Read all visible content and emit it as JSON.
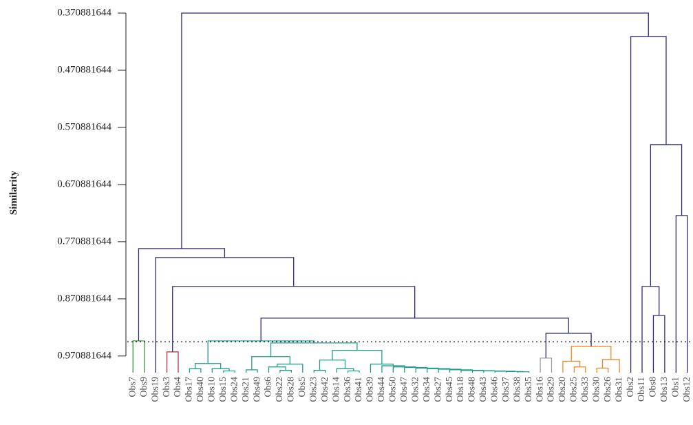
{
  "chart_data": {
    "type": "dendrogram",
    "ylabel": "Similarity",
    "ylim": [
      0.370881644,
      1
    ],
    "yticks": [
      0.370881644,
      0.470881644,
      0.570881644,
      0.670881644,
      0.770881644,
      0.870881644,
      0.970881644
    ],
    "cut_height": 0.9459,
    "color": "#2a2a78",
    "categories": [
      "Obs7",
      "Obs9",
      "Obs19",
      "Obs3",
      "Obs4",
      "Obs17",
      "Obs40",
      "Obs10",
      "Obs15",
      "Obs24",
      "Obs21",
      "Obs49",
      "Obs6",
      "Obs22",
      "Obs28",
      "Obs5",
      "Obs23",
      "Obs42",
      "Obs14",
      "Obs36",
      "Obs41",
      "Obs39",
      "Obs44",
      "Obs50",
      "Obs47",
      "Obs32",
      "Obs34",
      "Obs27",
      "Obs45",
      "Obs18",
      "Obs48",
      "Obs43",
      "Obs46",
      "Obs37",
      "Obs38",
      "Obs35",
      "Obs16",
      "Obs29",
      "Obs20",
      "Obs25",
      "Obs33",
      "Obs30",
      "Obs26",
      "Obs31",
      "Obs2",
      "Obs11",
      "Obs8",
      "Obs13",
      "Obs1",
      "Obs12"
    ],
    "tree": {
      "h": 0.370881644,
      "c": [
        {
          "h": 0.7829,
          "c": [
            {
              "h": 0.9444,
              "color": "#3a9a3a",
              "c": [
                0,
                1
              ]
            },
            {
              "h": 0.7986,
              "c": [
                2,
                {
                  "h": 0.8492,
                  "c": [
                    {
                      "h": 0.9637,
                      "color": "#a83232",
                      "c": [
                        3,
                        4
                      ]
                    },
                    {
                      "h": 0.9046,
                      "c": [
                        {
                          "h": 0.9444,
                          "color": "#1f9e8a",
                          "c": [
                            {
                              "h": 0.984,
                              "c": [
                                {
                                  "h": 0.993,
                                  "c": [
                                    5,
                                    6
                                  ]
                                },
                                {
                                  "h": 0.993,
                                  "c": [
                                    7,
                                    {
                                      "h": 0.997,
                                      "c": [
                                        8,
                                        9
                                      ]
                                    }
                                  ]
                                }
                              ]
                            },
                            {
                              "h": 0.948,
                              "c": [
                                {
                                  "h": 0.972,
                                  "c": [
                                    {
                                      "h": 0.995,
                                      "c": [
                                        10,
                                        11
                                      ]
                                    },
                                    {
                                      "h": 0.985,
                                      "c": [
                                        {
                                          "h": 0.99,
                                          "c": [
                                            12,
                                            {
                                              "h": 0.996,
                                              "c": [
                                                13,
                                                14
                                              ]
                                            }
                                          ]
                                        },
                                        15
                                      ]
                                    }
                                  ]
                                },
                                {
                                  "h": 0.961,
                                  "c": [
                                    {
                                      "h": 0.978,
                                      "c": [
                                        {
                                          "h": 0.996,
                                          "c": [
                                            16,
                                            17
                                          ]
                                        },
                                        {
                                          "h": 0.993,
                                          "c": [
                                            18,
                                            {
                                              "h": 0.997,
                                              "c": [
                                                19,
                                                20
                                              ]
                                            }
                                          ]
                                        }
                                      ]
                                    },
                                    {
                                      "h": 0.985,
                                      "c": [
                                        21,
                                        {
                                          "h": 0.988,
                                          "c": [
                                            22,
                                            {
                                              "h": 0.99,
                                              "c": [
                                                23,
                                                {
                                                  "h": 0.991,
                                                  "c": [
                                                    24,
                                                    {
                                                      "h": 0.992,
                                                      "c": [
                                                        25,
                                                        {
                                                          "h": 0.993,
                                                          "c": [
                                                            26,
                                                            {
                                                              "h": 0.994,
                                                              "c": [
                                                                27,
                                                                {
                                                                  "h": 0.995,
                                                                  "c": [
                                                                    28,
                                                                    {
                                                                      "h": 0.996,
                                                                      "c": [
                                                                        29,
                                                                        {
                                                                          "h": 0.9965,
                                                                          "c": [
                                                                            30,
                                                                            {
                                                                              "h": 0.997,
                                                                              "c": [
                                                                                31,
                                                                                {
                                                                                  "h": 0.9975,
                                                                                  "c": [
                                                                                    32,
                                                                                    {
                                                                                      "h": 0.998,
                                                                                      "c": [
                                                                                        33,
                                                                                        {
                                                                                          "h": 0.9985,
                                                                                          "c": [
                                                                                            34,
                                                                                            35
                                                                                          ]
                                                                                        }
                                                                                      ]
                                                                                    }
                                                                                  ]
                                                                                }
                                                                              ]
                                                                            }
                                                                          ]
                                                                        }
                                                                      ]
                                                                    }
                                                                  ]
                                                                }
                                                              ]
                                                            }
                                                          ]
                                                        }
                                                      ]
                                                    }
                                                  ]
                                                }
                                              ]
                                            }
                                          ]
                                        }
                                      ]
                                    }
                                  ]
                                }
                              ]
                            }
                          ]
                        },
                        {
                          "h": 0.9311,
                          "c": [
                            {
                              "h": 0.9745,
                              "color": "#a0a0a0",
                              "c": [
                                36,
                                37
                              ]
                            },
                            {
                              "h": 0.954,
                              "color": "#f08a24",
                              "c": [
                                {
                                  "h": 0.98,
                                  "c": [
                                    38,
                                    {
                                      "h": 0.99,
                                      "c": [
                                        39,
                                        40
                                      ]
                                    }
                                  ]
                                },
                                {
                                  "h": 0.977,
                                  "c": [
                                    {
                                      "h": 0.992,
                                      "c": [
                                        41,
                                        42
                                      ]
                                    },
                                    43
                                  ]
                                }
                              ]
                            }
                          ]
                        }
                      ]
                    }
                  ]
                }
              ]
            }
          ]
        },
        {
          "h": 0.4118,
          "c": [
            44,
            {
              "h": 0.601,
              "c": [
                {
                  "h": 0.8492,
                  "c": [
                    45,
                    {
                      "h": 0.9,
                      "c": [
                        46,
                        47
                      ]
                    }
                  ]
                },
                {
                  "h": 0.7251,
                  "c": [
                    48,
                    49
                  ]
                }
              ]
            }
          ]
        }
      ]
    }
  }
}
